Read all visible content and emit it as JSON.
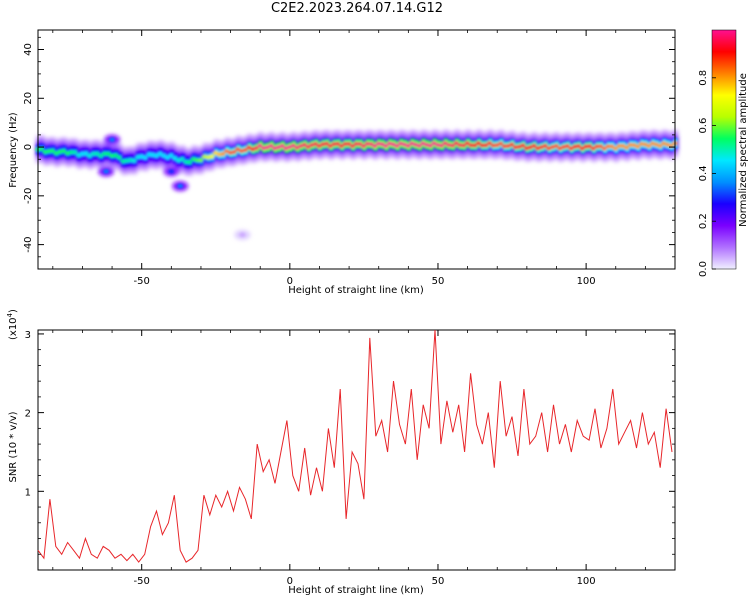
{
  "title": "C2E2.2023.264.07.14.G12",
  "chart_data": [
    {
      "type": "heatmap",
      "title": "C2E2.2023.264.07.14.G12",
      "xlabel": "Height of straight line (km)",
      "ylabel": "Frequency (Hz)",
      "xlim": [
        -85,
        130
      ],
      "ylim": [
        -50,
        48
      ],
      "xticks": [
        -50,
        0,
        50,
        100
      ],
      "yticks": [
        -40,
        -20,
        0,
        20,
        40
      ],
      "grid": false,
      "colorbar": {
        "label": "Normalized spectral amplitude",
        "range": [
          0.0,
          1.0
        ],
        "ticks": [
          0.0,
          0.2,
          0.4,
          0.6,
          0.8
        ],
        "colormap": [
          "#f0f0ff",
          "#b070ff",
          "#7a00ff",
          "#1a00ff",
          "#0090ff",
          "#00e8ff",
          "#00ff60",
          "#b8ff00",
          "#ffff00",
          "#ff8000",
          "#ff0000",
          "#ff1090"
        ]
      },
      "ridge": {
        "x": [
          -85,
          -80,
          -75,
          -70,
          -65,
          -60,
          -55,
          -50,
          -45,
          -40,
          -35,
          -30,
          -25,
          -20,
          -15,
          -10,
          -5,
          0,
          10,
          20,
          30,
          40,
          50,
          60,
          70,
          80,
          90,
          100,
          110,
          120,
          130
        ],
        "frequency_hz": [
          -1,
          -2,
          -2,
          -3,
          -3,
          -3,
          -6,
          -4,
          -3,
          -4,
          -6,
          -5,
          -3,
          -2,
          -1,
          0,
          0,
          0,
          1,
          1,
          1,
          1,
          1,
          1,
          1,
          0,
          0,
          0,
          0,
          1,
          1
        ],
        "peak_amplitude": [
          0.55,
          0.55,
          0.55,
          0.45,
          0.5,
          0.55,
          0.5,
          0.45,
          0.45,
          0.45,
          0.5,
          0.6,
          0.75,
          0.85,
          0.85,
          1.0,
          1.0,
          1.0,
          0.95,
          0.95,
          1.0,
          1.0,
          1.0,
          0.95,
          0.85,
          0.9,
          0.85,
          0.9,
          0.8,
          0.8,
          0.8
        ]
      },
      "side_features": [
        {
          "x": -60,
          "frequency_hz": 3,
          "amplitude": 0.35
        },
        {
          "x": -62,
          "frequency_hz": -10,
          "amplitude": 0.35
        },
        {
          "x": -40,
          "frequency_hz": -10,
          "amplitude": 0.3
        },
        {
          "x": -37,
          "frequency_hz": -16,
          "amplitude": 0.35
        },
        {
          "x": -16,
          "frequency_hz": -36,
          "amplitude": 0.05
        }
      ]
    },
    {
      "type": "line",
      "xlabel": "Height of straight line (km)",
      "ylabel": "SNR (10 * v/v)",
      "y_multiplier": "(x10",
      "y_multiplier_exponent": "4",
      "y_multiplier_close": ")",
      "xlim": [
        -85,
        130
      ],
      "ylim": [
        0,
        3.05
      ],
      "xticks": [
        -50,
        0,
        50,
        100
      ],
      "yticks": [
        1,
        2,
        3
      ],
      "grid": false,
      "series": [
        {
          "color": "#e8262a",
          "x": [
            -85,
            -83,
            -81,
            -79,
            -77,
            -75,
            -73,
            -71,
            -69,
            -67,
            -65,
            -63,
            -61,
            -59,
            -57,
            -55,
            -53,
            -51,
            -49,
            -47,
            -45,
            -43,
            -41,
            -39,
            -37,
            -35,
            -33,
            -31,
            -29,
            -27,
            -25,
            -23,
            -21,
            -19,
            -17,
            -15,
            -13,
            -11,
            -9,
            -7,
            -5,
            -3,
            -1,
            1,
            3,
            5,
            7,
            9,
            11,
            13,
            15,
            17,
            19,
            21,
            23,
            25,
            27,
            29,
            31,
            33,
            35,
            37,
            39,
            41,
            43,
            45,
            47,
            49,
            51,
            53,
            55,
            57,
            59,
            61,
            63,
            65,
            67,
            69,
            71,
            73,
            75,
            77,
            79,
            81,
            83,
            85,
            87,
            89,
            91,
            93,
            95,
            97,
            99,
            101,
            103,
            105,
            107,
            109,
            111,
            113,
            115,
            117,
            119,
            121,
            123,
            125,
            127,
            129
          ],
          "y": [
            0.25,
            0.15,
            0.9,
            0.3,
            0.2,
            0.35,
            0.25,
            0.15,
            0.4,
            0.2,
            0.15,
            0.3,
            0.25,
            0.15,
            0.2,
            0.12,
            0.2,
            0.1,
            0.2,
            0.55,
            0.75,
            0.45,
            0.6,
            0.95,
            0.25,
            0.1,
            0.15,
            0.25,
            0.95,
            0.7,
            0.95,
            0.8,
            1.0,
            0.75,
            1.05,
            0.9,
            0.65,
            1.6,
            1.25,
            1.4,
            1.1,
            1.5,
            1.9,
            1.2,
            1.0,
            1.55,
            0.95,
            1.3,
            1.0,
            1.8,
            1.3,
            2.3,
            0.65,
            1.5,
            1.35,
            0.9,
            2.95,
            1.7,
            1.9,
            1.5,
            2.4,
            1.85,
            1.6,
            2.3,
            1.4,
            2.1,
            1.8,
            3.05,
            1.6,
            2.15,
            1.75,
            2.1,
            1.5,
            2.5,
            1.85,
            1.6,
            2.0,
            1.3,
            2.4,
            1.7,
            1.95,
            1.45,
            2.3,
            1.6,
            1.7,
            2.0,
            1.5,
            2.1,
            1.6,
            1.85,
            1.5,
            1.9,
            1.7,
            1.65,
            2.05,
            1.55,
            1.8,
            2.3,
            1.6,
            1.75,
            1.9,
            1.55,
            2.0,
            1.6,
            1.75,
            1.3,
            2.05,
            1.5
          ]
        }
      ]
    }
  ]
}
